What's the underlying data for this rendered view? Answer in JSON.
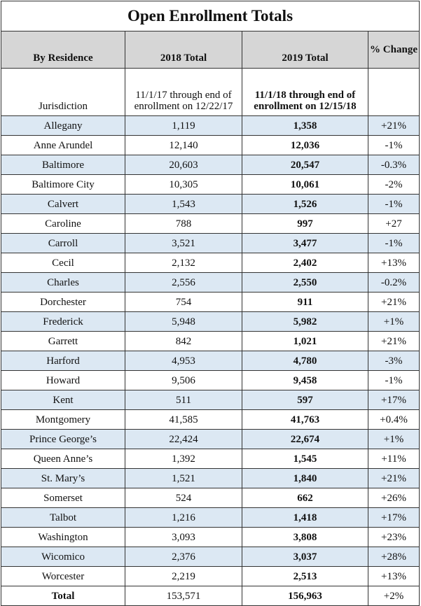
{
  "title": "Open Enrollment Totals",
  "header": {
    "residence": "By Residence",
    "total_2018": "2018 Total",
    "total_2019": "2019 Total",
    "change": "% Change"
  },
  "subheader": {
    "jurisdiction": "Jurisdiction",
    "period_2018": "11/1/17 through end of enrollment on 12/22/17",
    "period_2019": "11/1/18 through end of enrollment on 12/15/18"
  },
  "rows": [
    [
      "Allegany",
      "1,119",
      "1,358",
      "+21%"
    ],
    [
      "Anne Arundel",
      "12,140",
      "12,036",
      "-1%"
    ],
    [
      "Baltimore",
      "20,603",
      "20,547",
      "-0.3%"
    ],
    [
      "Baltimore City",
      "10,305",
      "10,061",
      "-2%"
    ],
    [
      "Calvert",
      "1,543",
      "1,526",
      "-1%"
    ],
    [
      "Caroline",
      "788",
      "997",
      "+27"
    ],
    [
      "Carroll",
      "3,521",
      "3,477",
      "-1%"
    ],
    [
      "Cecil",
      "2,132",
      "2,402",
      "+13%"
    ],
    [
      "Charles",
      "2,556",
      "2,550",
      "-0.2%"
    ],
    [
      "Dorchester",
      "754",
      "911",
      "+21%"
    ],
    [
      "Frederick",
      "5,948",
      "5,982",
      "+1%"
    ],
    [
      "Garrett",
      "842",
      "1,021",
      "+21%"
    ],
    [
      "Harford",
      "4,953",
      "4,780",
      "-3%"
    ],
    [
      "Howard",
      "9,506",
      "9,458",
      "-1%"
    ],
    [
      "Kent",
      "511",
      "597",
      "+17%"
    ],
    [
      "Montgomery",
      "41,585",
      "41,763",
      "+0.4%"
    ],
    [
      "Prince George’s",
      "22,424",
      "22,674",
      "+1%"
    ],
    [
      "Queen Anne’s",
      "1,392",
      "1,545",
      "+11%"
    ],
    [
      "St. Mary’s",
      "1,521",
      "1,840",
      "+21%"
    ],
    [
      "Somerset",
      "524",
      "662",
      "+26%"
    ],
    [
      "Talbot",
      "1,216",
      "1,418",
      "+17%"
    ],
    [
      "Washington",
      "3,093",
      "3,808",
      "+23%"
    ],
    [
      "Wicomico",
      "2,376",
      "3,037",
      "+28%"
    ],
    [
      "Worcester",
      "2,219",
      "2,513",
      "+13%"
    ]
  ],
  "total": [
    "Total",
    "153,571",
    "156,963",
    "+2%"
  ]
}
